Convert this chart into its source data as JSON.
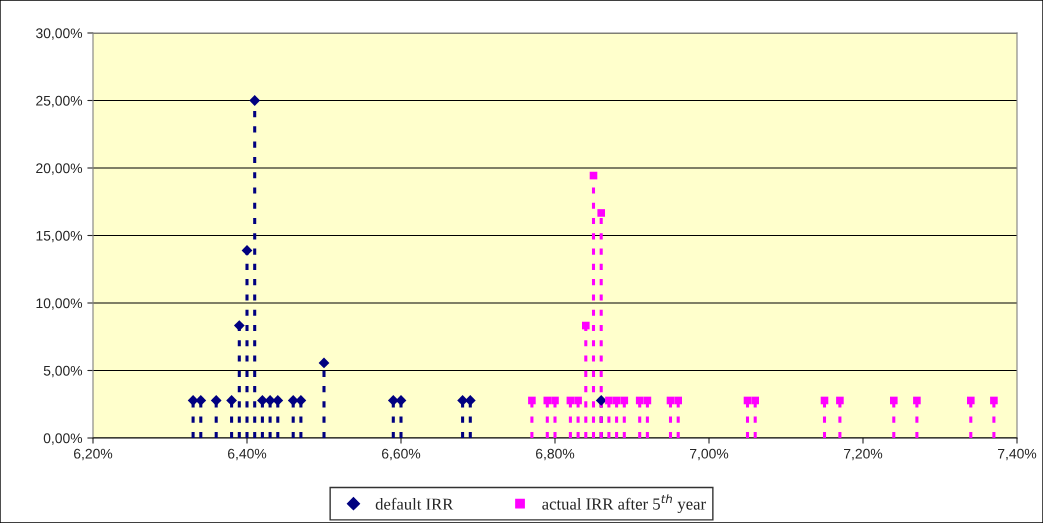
{
  "chart_data": {
    "type": "lollipop",
    "series": [
      {
        "name": "default IRR",
        "color": "#000080",
        "marker": "diamond",
        "x": [
          6.33,
          6.34,
          6.36,
          6.38,
          6.39,
          6.4,
          6.41,
          6.42,
          6.43,
          6.44,
          6.46,
          6.47,
          6.5,
          6.59,
          6.6,
          6.68,
          6.69,
          6.86
        ],
        "values": [
          2.78,
          2.78,
          2.78,
          2.78,
          8.33,
          13.89,
          25,
          2.78,
          2.78,
          2.78,
          2.78,
          2.78,
          5.56,
          2.78,
          2.78,
          2.78,
          2.78,
          2.78
        ]
      },
      {
        "name": "actual IRR after 5$^{th}$ year",
        "color": "#ff00ff",
        "marker": "square",
        "x": [
          6.77,
          6.79,
          6.8,
          6.82,
          6.83,
          6.84,
          6.85,
          6.86,
          6.87,
          6.88,
          6.89,
          6.91,
          6.92,
          6.95,
          6.96,
          7.05,
          7.06,
          7.15,
          7.17,
          7.24,
          7.27,
          7.34,
          7.37
        ],
        "values": [
          2.78,
          2.78,
          2.78,
          2.78,
          2.78,
          8.33,
          19.44,
          16.67,
          2.78,
          2.78,
          2.78,
          2.78,
          2.78,
          2.78,
          2.78,
          2.78,
          2.78,
          2.78,
          2.78,
          2.78,
          2.78,
          2.78,
          2.78
        ]
      }
    ],
    "line_style": "dashed",
    "xlim": [
      6.2,
      7.4
    ],
    "xticks": [
      {
        "value": 6.2,
        "label": "6,20%"
      },
      {
        "value": 6.4,
        "label": "6,40%"
      },
      {
        "value": 6.6,
        "label": "6,60%"
      },
      {
        "value": 6.8,
        "label": "6,80%"
      },
      {
        "value": 7.0,
        "label": "7,00%"
      },
      {
        "value": 7.2,
        "label": "7,20%"
      },
      {
        "value": 7.4,
        "label": "7,40%"
      }
    ],
    "ylim": [
      0,
      30
    ],
    "yticks": [
      {
        "value": 0,
        "label": "0,00%"
      },
      {
        "value": 5,
        "label": "5,00%"
      },
      {
        "value": 10,
        "label": "10,00%"
      },
      {
        "value": 15,
        "label": "15,00%"
      },
      {
        "value": 20,
        "label": "20,00%"
      },
      {
        "value": 25,
        "label": "25,00%"
      },
      {
        "value": 30,
        "label": "30,00%"
      }
    ],
    "grid": "y",
    "legend": "bottom"
  }
}
